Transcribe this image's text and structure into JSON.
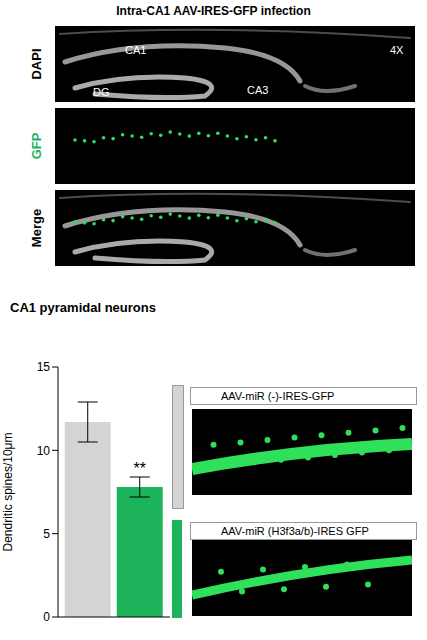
{
  "title": "Intra-CA1 AAV-IRES-GFP infection",
  "panels": [
    {
      "label": "DAPI",
      "annotations": [
        "CA1",
        "DG",
        "CA3",
        "4X"
      ]
    },
    {
      "label": "GFP"
    },
    {
      "label": "Merge"
    }
  ],
  "chart_data": {
    "type": "bar",
    "title": "CA1 pyramidal neurons",
    "y_label": "Dendritic spines/10μm",
    "categories": [
      null
    ],
    "series": [
      {
        "name": "AAV-miR (-)-IRES-GFP",
        "color": "#d4d4d4",
        "values": [
          11.7
        ],
        "errors": [
          1.2
        ]
      },
      {
        "name": "AAV-miR (H3f3a/b)-IRES GFP",
        "color": "#1db35a",
        "values": [
          7.8
        ],
        "errors": [
          0.6
        ]
      }
    ],
    "ylim": [
      0,
      15
    ],
    "yticks": [
      0,
      5,
      10,
      15
    ],
    "annotations": [
      {
        "text": "**",
        "series": 1
      }
    ],
    "tick_labels": "y",
    "grid": false
  }
}
